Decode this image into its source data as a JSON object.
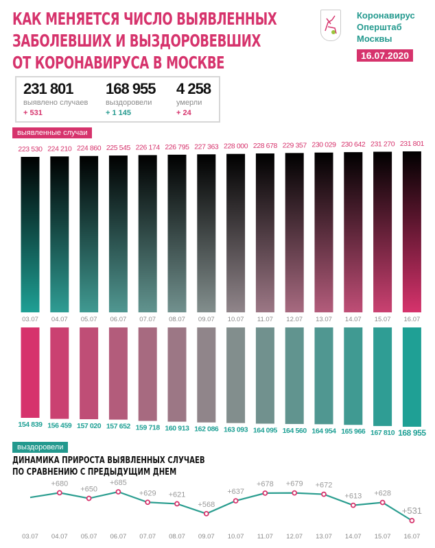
{
  "header": {
    "title_lines": [
      "КАК МЕНЯЕТСЯ ЧИСЛО ВЫЯВЛЕННЫХ",
      "ЗАБОЛЕВШИХ И ВЫЗДОРОВЕВШИХ",
      "ОТ КОРОНАВИРУСА В МОСКВЕ"
    ],
    "org_lines": [
      "Коронавирус",
      "Оперштаб",
      "Москвы"
    ],
    "date": "16.07.2020"
  },
  "stats": [
    {
      "value": "231 801",
      "label": "выявлено случаев",
      "delta": "+ 531",
      "color": "#d6336c"
    },
    {
      "value": "168 955",
      "label": "выздоровели",
      "delta": "+ 1 145",
      "color": "#23998e"
    },
    {
      "value": "4 258",
      "label": "умерли",
      "delta": "+ 24",
      "color": "#d6336c"
    }
  ],
  "colors": {
    "pink": "#d6336c",
    "teal": "#1fa095",
    "line": "#2a9d8f",
    "gray": "#8a8a8a"
  },
  "chart_data": [
    {
      "type": "bar",
      "legend": "выявленные случаи",
      "categories": [
        "03.07",
        "04.07",
        "05.07",
        "06.07",
        "07.07",
        "08.07",
        "09.07",
        "10.07",
        "11.07",
        "12.07",
        "13.07",
        "14.07",
        "15.07",
        "16.07"
      ],
      "values": [
        223530,
        224210,
        224860,
        225545,
        226174,
        226795,
        227363,
        228000,
        228678,
        229357,
        230029,
        230642,
        231270,
        231801
      ],
      "labels": [
        "223 530",
        "224 210",
        "224 860",
        "225 545",
        "226 174",
        "226 795",
        "227 363",
        "228 000",
        "228 678",
        "229 357",
        "230 029",
        "230 642",
        "231 270",
        "231 801"
      ]
    },
    {
      "type": "bar",
      "legend": "выздоровели",
      "orientation": "downward",
      "categories": [
        "03.07",
        "04.07",
        "05.07",
        "06.07",
        "07.07",
        "08.07",
        "09.07",
        "10.07",
        "11.07",
        "12.07",
        "13.07",
        "14.07",
        "15.07",
        "16.07"
      ],
      "values": [
        154839,
        156459,
        157020,
        157652,
        159718,
        160913,
        162086,
        163093,
        164095,
        164560,
        164954,
        165966,
        167810,
        168955
      ],
      "labels": [
        "154 839",
        "156 459",
        "157 020",
        "157 652",
        "159 718",
        "160 913",
        "162 086",
        "163 093",
        "164 095",
        "164 560",
        "164 954",
        "165 966",
        "167 810",
        "168 955"
      ]
    },
    {
      "type": "line",
      "title_lines": [
        "ДИНАМИКА ПРИРОСТА ВЫЯВЛЕННЫХ СЛУЧАЕВ",
        "ПО СРАВНЕНИЮ С ПРЕДЫДУЩИМ ДНЕМ"
      ],
      "categories": [
        "03.07",
        "04.07",
        "05.07",
        "06.07",
        "07.07",
        "08.07",
        "09.07",
        "10.07",
        "11.07",
        "12.07",
        "13.07",
        "14.07",
        "15.07",
        "16.07"
      ],
      "values": [
        null,
        680,
        650,
        685,
        629,
        621,
        568,
        637,
        678,
        679,
        672,
        613,
        628,
        531
      ],
      "labels": [
        "",
        "+680",
        "+650",
        "+685",
        "+629",
        "+621",
        "+568",
        "+637",
        "+678",
        "+679",
        "+672",
        "+613",
        "+628",
        "+531"
      ]
    }
  ]
}
